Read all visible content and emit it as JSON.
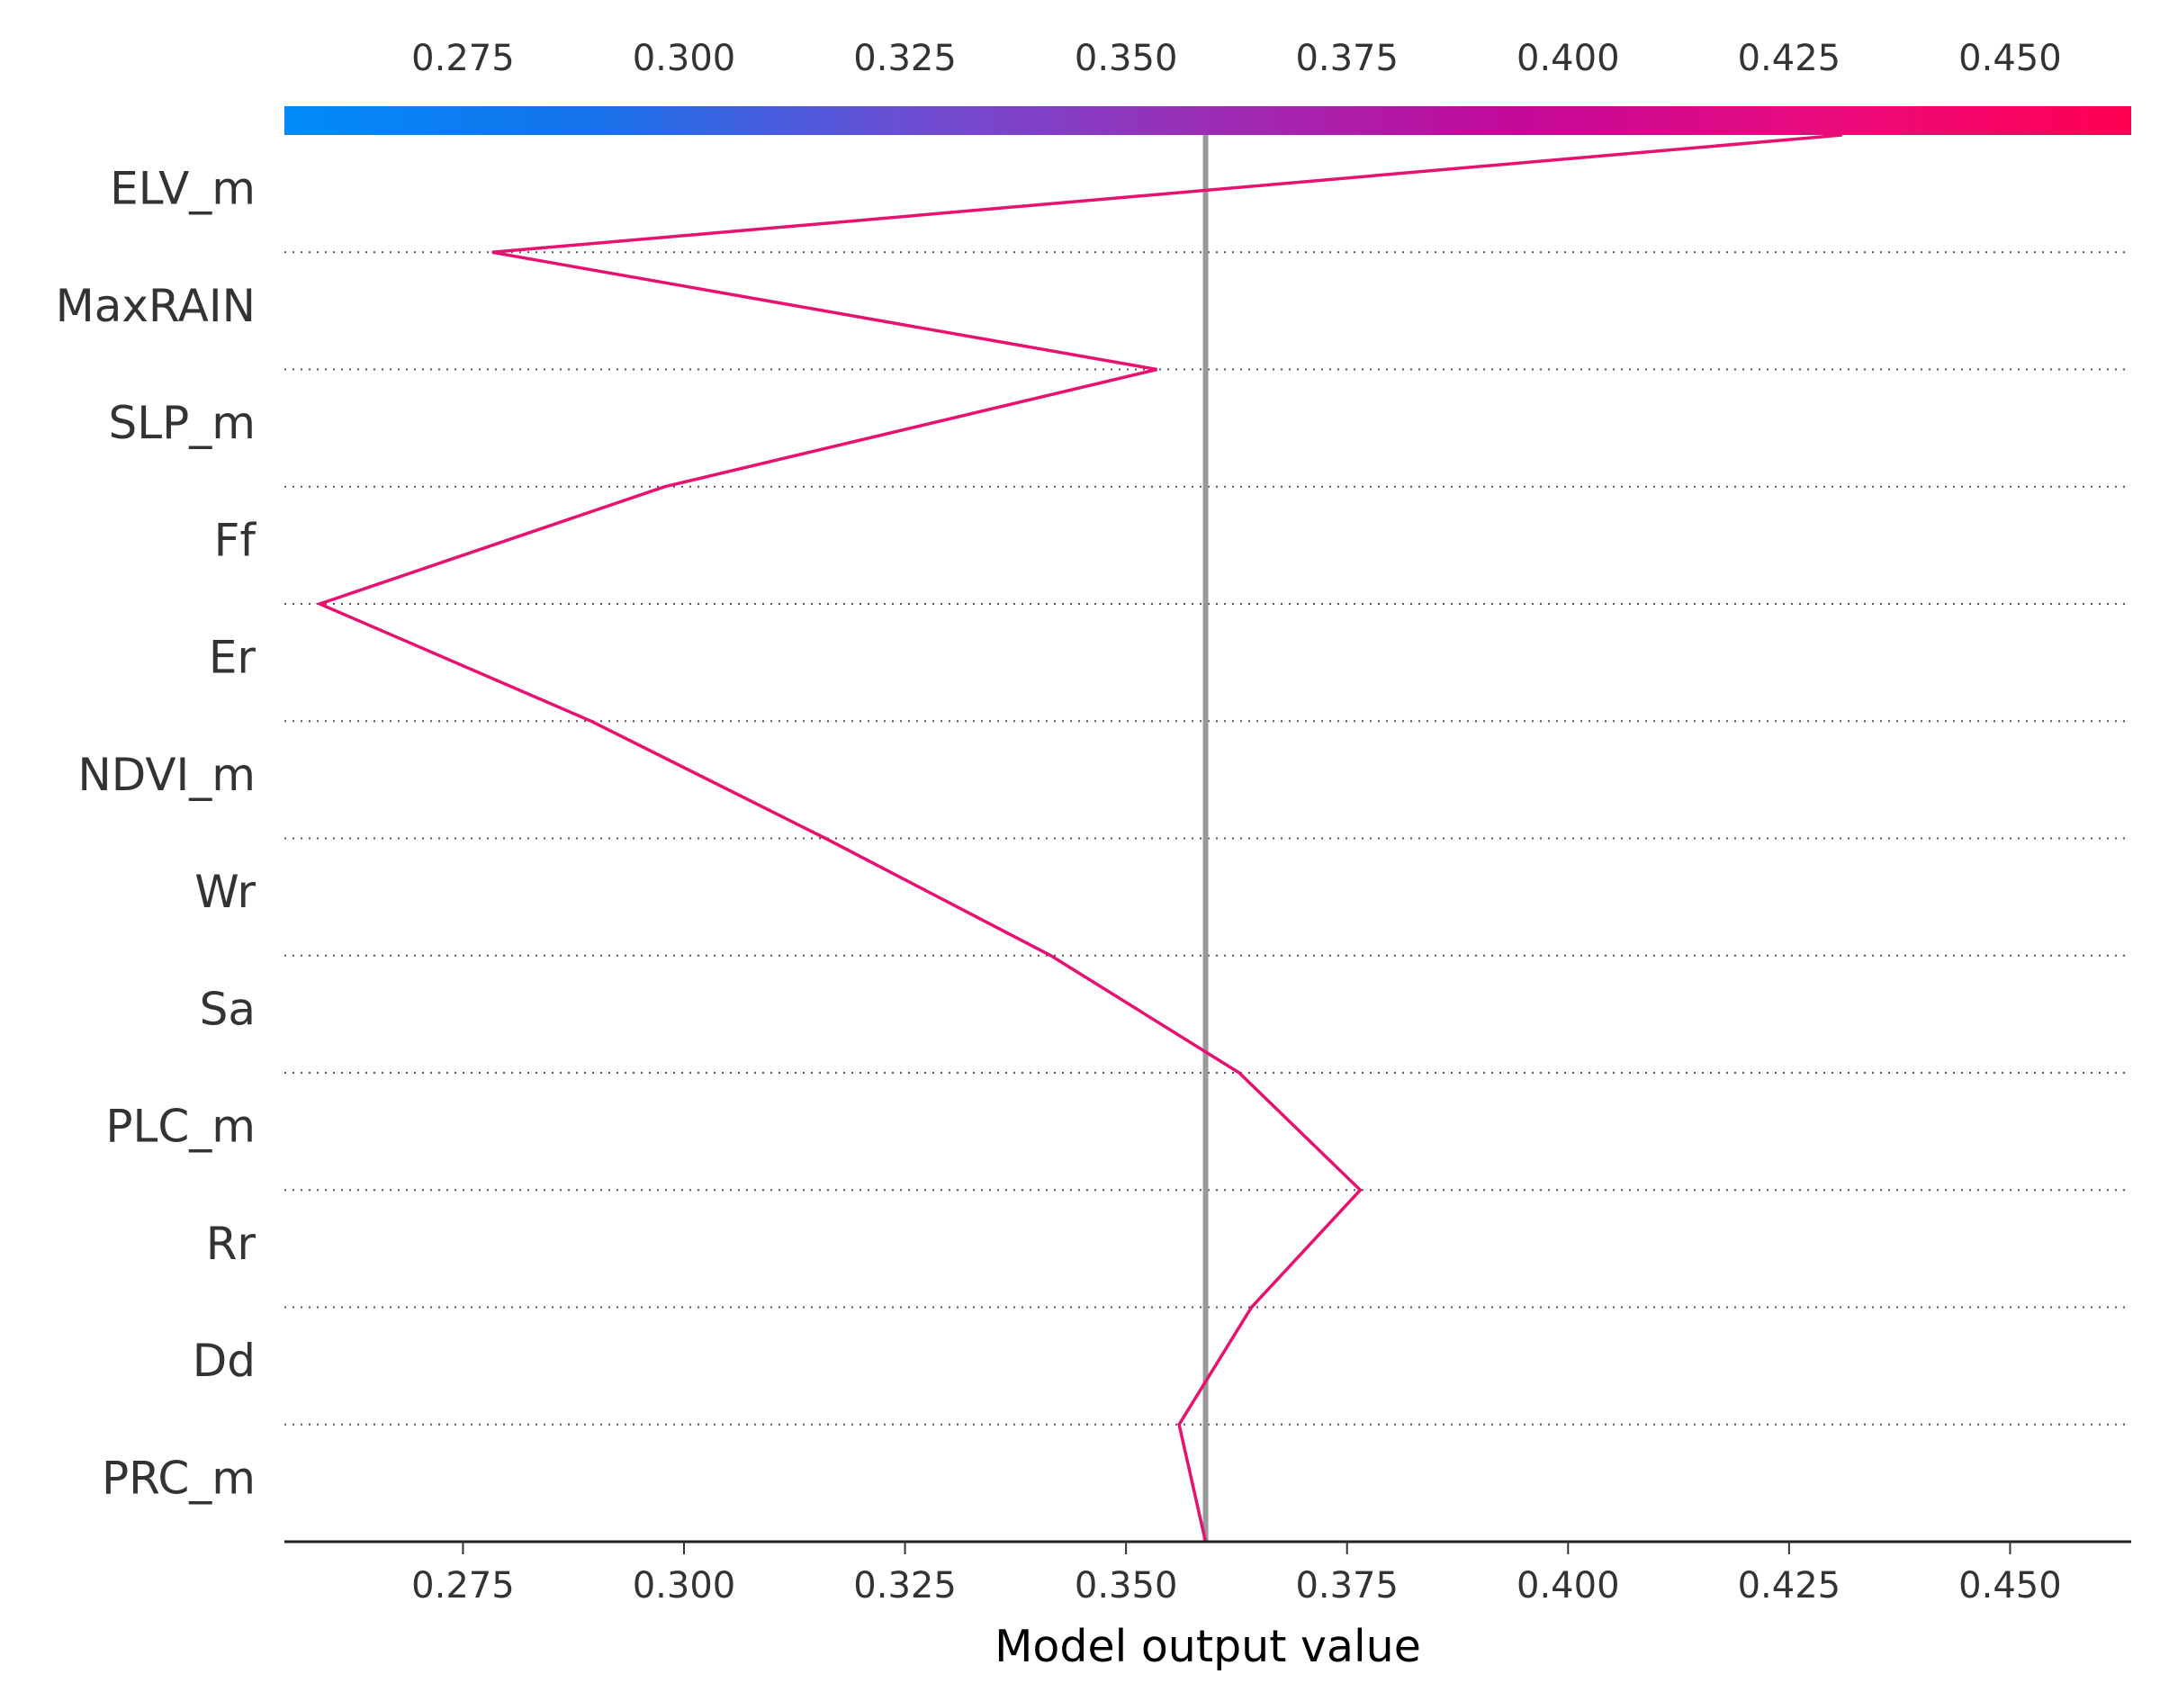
{
  "chart_data": {
    "type": "line",
    "subtype": "shap-decision-plot",
    "xlabel": "Model output value",
    "xlim": [
      0.2548,
      0.4637
    ],
    "xticks": [
      0.275,
      0.3,
      0.325,
      0.35,
      0.375,
      0.4,
      0.425,
      0.45
    ],
    "xtick_labels": [
      "0.275",
      "0.300",
      "0.325",
      "0.350",
      "0.375",
      "0.400",
      "0.425",
      "0.450"
    ],
    "base_value": 0.359,
    "features": [
      "ELV_m",
      "MaxRAIN",
      "SLP_m",
      "Ff",
      "Er",
      "NDVI_m",
      "Wr",
      "Sa",
      "PLC_m",
      "Rr",
      "Dd",
      "PRC_m"
    ],
    "path_values": [
      0.431,
      0.2783,
      0.3535,
      0.2978,
      0.2588,
      0.2895,
      0.316,
      0.3415,
      0.3628,
      0.3765,
      0.3642,
      0.356,
      0.359
    ],
    "line_color": "#e8116f",
    "base_line_color": "#999999",
    "colorbar": {
      "position": "top",
      "colors": [
        "#008bfb",
        "#1672ea",
        "#6a4fd4",
        "#9b2db5",
        "#c3099a",
        "#e90a7d",
        "#ff0052"
      ]
    },
    "grid": "dotted horizontal at feature boundaries",
    "legend": "none"
  }
}
